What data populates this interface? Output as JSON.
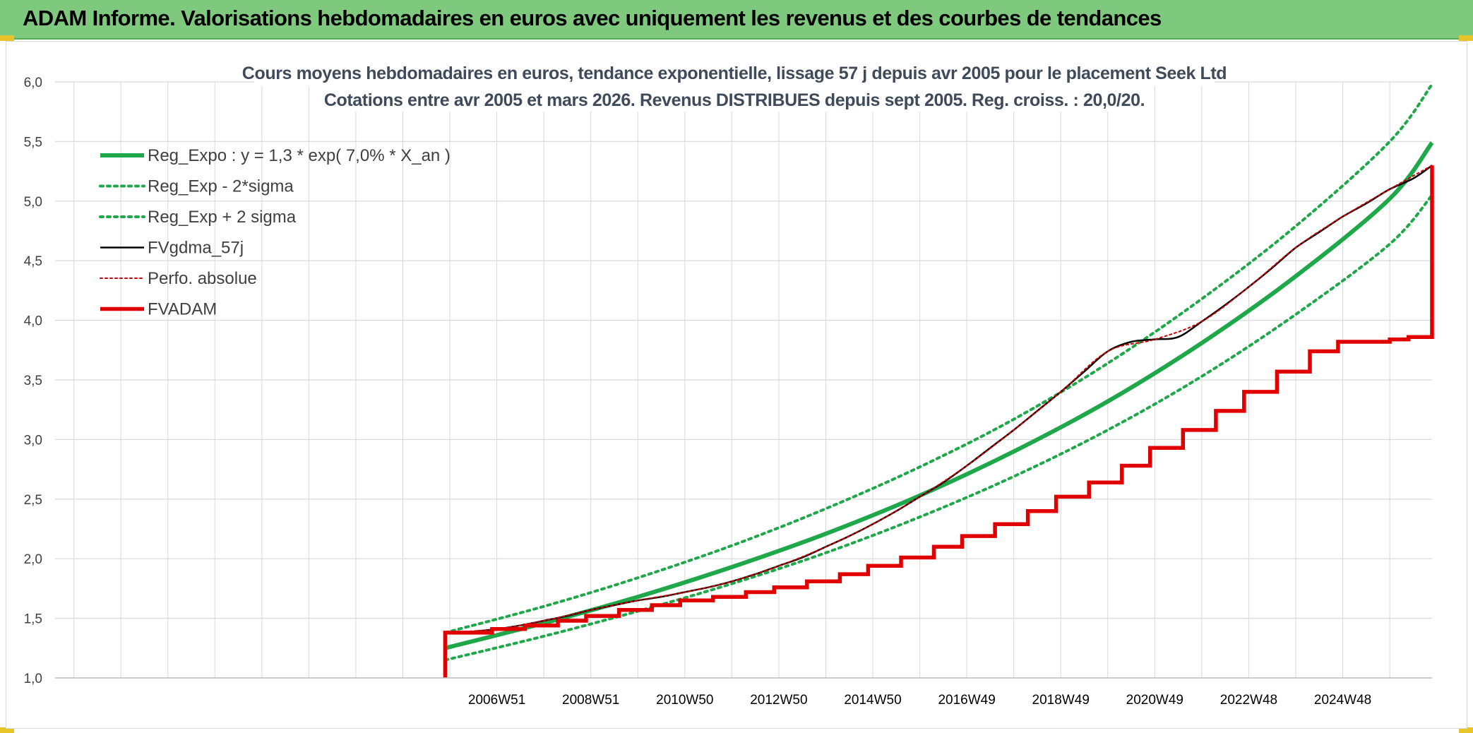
{
  "banner": {
    "title": "ADAM Informe. Valorisations hebdomadaires en euros avec uniquement les revenus et des courbes de tendances"
  },
  "colors": {
    "banner_bg": "#7fc97f",
    "trend": "#1fa84a",
    "fv_line": "#000000",
    "perf_line": "#cc0000",
    "adam_line": "#e00000",
    "grid": "#d9d9d9"
  },
  "chart_data": {
    "type": "line",
    "title": "Cours moyens hebdomadaires en euros, tendance exponentielle, lissage 57 j depuis avr 2005 pour le placement Seek Ltd",
    "subtitle": "Cotations entre avr 2005 et mars 2026. Revenus DISTRIBUES depuis sept 2005. Reg. croiss. : 20,0/20.",
    "xlabel": "",
    "ylabel": "",
    "xlim": [
      1997.6,
      2026.9
    ],
    "ylim": [
      1.0,
      6.0
    ],
    "yticks": [
      "1,0",
      "1,5",
      "2,0",
      "2,5",
      "3,0",
      "3,5",
      "4,0",
      "4,5",
      "5,0",
      "5,5",
      "6,0"
    ],
    "xticks": [
      {
        "label": "2006W51",
        "x": 2007.0
      },
      {
        "label": "2008W51",
        "x": 2009.0
      },
      {
        "label": "2010W50",
        "x": 2011.0
      },
      {
        "label": "2012W50",
        "x": 2013.0
      },
      {
        "label": "2014W50",
        "x": 2015.0
      },
      {
        "label": "2016W49",
        "x": 2017.0
      },
      {
        "label": "2018W49",
        "x": 2019.0
      },
      {
        "label": "2020W49",
        "x": 2021.0
      },
      {
        "label": "2022W48",
        "x": 2023.0
      },
      {
        "label": "2024W48",
        "x": 2025.0
      }
    ],
    "legend_position": "top-left",
    "grid": true,
    "series": [
      {
        "name": "Reg_Expo : y = 1,3 * exp( 7,0% *  X_an )",
        "style": "solid-thick-green",
        "points": [
          [
            2005.9,
            1.25
          ],
          [
            2008.0,
            1.46
          ],
          [
            2010.0,
            1.68
          ],
          [
            2012.0,
            1.93
          ],
          [
            2014.0,
            2.21
          ],
          [
            2016.0,
            2.53
          ],
          [
            2018.0,
            2.9
          ],
          [
            2020.0,
            3.32
          ],
          [
            2022.0,
            3.81
          ],
          [
            2024.0,
            4.37
          ],
          [
            2026.0,
            5.02
          ],
          [
            2026.9,
            5.49
          ]
        ]
      },
      {
        "name": "Reg_Exp - 2*sigma",
        "style": "dotted-green",
        "points": [
          [
            2005.9,
            1.15
          ],
          [
            2008.0,
            1.35
          ],
          [
            2010.0,
            1.56
          ],
          [
            2012.0,
            1.79
          ],
          [
            2014.0,
            2.05
          ],
          [
            2016.0,
            2.35
          ],
          [
            2018.0,
            2.69
          ],
          [
            2020.0,
            3.08
          ],
          [
            2022.0,
            3.53
          ],
          [
            2024.0,
            4.05
          ],
          [
            2026.0,
            4.64
          ],
          [
            2026.9,
            5.05
          ]
        ]
      },
      {
        "name": "Reg_Exp + 2 sigma",
        "style": "dotted-green",
        "points": [
          [
            2005.9,
            1.38
          ],
          [
            2008.0,
            1.6
          ],
          [
            2010.0,
            1.84
          ],
          [
            2012.0,
            2.11
          ],
          [
            2014.0,
            2.42
          ],
          [
            2016.0,
            2.77
          ],
          [
            2018.0,
            3.17
          ],
          [
            2020.0,
            3.64
          ],
          [
            2022.0,
            4.18
          ],
          [
            2024.0,
            4.79
          ],
          [
            2026.0,
            5.5
          ],
          [
            2026.9,
            5.98
          ]
        ]
      },
      {
        "name": "FVgdma_57j",
        "style": "solid-black",
        "points": [
          [
            2005.9,
            1.38
          ],
          [
            2006.5,
            1.39
          ],
          [
            2007.0,
            1.41
          ],
          [
            2007.5,
            1.44
          ],
          [
            2008.0,
            1.48
          ],
          [
            2008.5,
            1.52
          ],
          [
            2009.0,
            1.57
          ],
          [
            2009.5,
            1.61
          ],
          [
            2010.0,
            1.65
          ],
          [
            2010.5,
            1.68
          ],
          [
            2011.0,
            1.72
          ],
          [
            2011.5,
            1.76
          ],
          [
            2012.0,
            1.81
          ],
          [
            2012.5,
            1.87
          ],
          [
            2013.0,
            1.94
          ],
          [
            2013.5,
            2.01
          ],
          [
            2014.0,
            2.1
          ],
          [
            2014.5,
            2.19
          ],
          [
            2015.0,
            2.29
          ],
          [
            2015.5,
            2.4
          ],
          [
            2016.0,
            2.52
          ],
          [
            2016.5,
            2.64
          ],
          [
            2017.0,
            2.78
          ],
          [
            2017.5,
            2.93
          ],
          [
            2018.0,
            3.08
          ],
          [
            2018.5,
            3.24
          ],
          [
            2019.0,
            3.4
          ],
          [
            2019.5,
            3.57
          ],
          [
            2020.0,
            3.74
          ],
          [
            2020.5,
            3.82
          ],
          [
            2021.0,
            3.84
          ],
          [
            2021.5,
            3.86
          ],
          [
            2022.0,
            3.99
          ],
          [
            2022.5,
            4.13
          ],
          [
            2023.0,
            4.28
          ],
          [
            2023.5,
            4.44
          ],
          [
            2024.0,
            4.61
          ],
          [
            2024.5,
            4.74
          ],
          [
            2025.0,
            4.87
          ],
          [
            2025.5,
            4.98
          ],
          [
            2026.0,
            5.1
          ],
          [
            2026.5,
            5.19
          ],
          [
            2026.9,
            5.3
          ]
        ]
      },
      {
        "name": "Perfo. absolue",
        "style": "dotted-red",
        "points": [
          [
            2005.9,
            1.38
          ],
          [
            2007.0,
            1.41
          ],
          [
            2008.0,
            1.48
          ],
          [
            2009.0,
            1.57
          ],
          [
            2010.0,
            1.65
          ],
          [
            2011.0,
            1.72
          ],
          [
            2012.0,
            1.81
          ],
          [
            2013.0,
            1.94
          ],
          [
            2014.0,
            2.1
          ],
          [
            2015.0,
            2.29
          ],
          [
            2016.0,
            2.52
          ],
          [
            2017.0,
            2.78
          ],
          [
            2018.0,
            3.08
          ],
          [
            2019.0,
            3.4
          ],
          [
            2020.0,
            3.74
          ],
          [
            2021.0,
            3.84
          ],
          [
            2022.0,
            3.99
          ],
          [
            2023.0,
            4.28
          ],
          [
            2024.0,
            4.61
          ],
          [
            2025.0,
            4.87
          ],
          [
            2026.0,
            5.1
          ],
          [
            2026.9,
            5.3
          ]
        ]
      },
      {
        "name": "FVADAM",
        "style": "solid-thick-red",
        "start": [
          2005.9,
          1.0
        ],
        "steps": [
          [
            2005.9,
            1.38
          ],
          [
            2006.9,
            1.41
          ],
          [
            2007.6,
            1.44
          ],
          [
            2008.3,
            1.48
          ],
          [
            2008.9,
            1.52
          ],
          [
            2009.6,
            1.57
          ],
          [
            2010.3,
            1.61
          ],
          [
            2010.9,
            1.65
          ],
          [
            2011.6,
            1.68
          ],
          [
            2012.3,
            1.72
          ],
          [
            2012.9,
            1.76
          ],
          [
            2013.6,
            1.81
          ],
          [
            2014.3,
            1.87
          ],
          [
            2014.9,
            1.94
          ],
          [
            2015.6,
            2.01
          ],
          [
            2016.3,
            2.1
          ],
          [
            2016.9,
            2.19
          ],
          [
            2017.6,
            2.29
          ],
          [
            2018.3,
            2.4
          ],
          [
            2018.9,
            2.52
          ],
          [
            2019.6,
            2.64
          ],
          [
            2020.3,
            2.78
          ],
          [
            2020.9,
            2.93
          ],
          [
            2021.6,
            3.08
          ],
          [
            2022.3,
            3.24
          ],
          [
            2022.9,
            3.4
          ],
          [
            2023.6,
            3.57
          ],
          [
            2024.3,
            3.74
          ],
          [
            2024.9,
            3.82
          ],
          [
            2026.0,
            3.84
          ],
          [
            2026.4,
            3.86
          ]
        ]
      }
    ]
  }
}
